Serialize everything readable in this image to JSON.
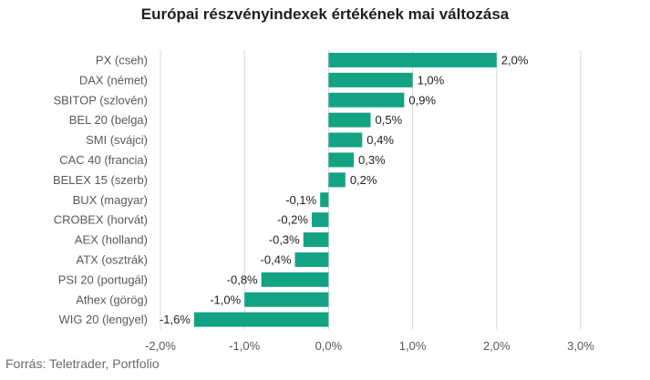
{
  "chart_data": {
    "type": "bar",
    "orientation": "horizontal",
    "title": "Európai részvényindexek értékének mai változása",
    "categories": [
      "PX (cseh)",
      "DAX (német)",
      "SBITOP (szlovén)",
      "BEL 20 (belga)",
      "SMI (svájci)",
      "CAC 40 (francia)",
      "BELEX 15 (szerb)",
      "BUX (magyar)",
      "CROBEX (horvát)",
      "AEX (holland)",
      "ATX (osztrák)",
      "PSI 20 (portugál)",
      "Athex (görög)",
      "WIG 20 (lengyel)"
    ],
    "values": [
      2.0,
      1.0,
      0.9,
      0.5,
      0.4,
      0.3,
      0.2,
      -0.1,
      -0.2,
      -0.3,
      -0.4,
      -0.8,
      -1.0,
      -1.6
    ],
    "value_labels": [
      "2,0%",
      "1,0%",
      "0,9%",
      "0,5%",
      "0,4%",
      "0,3%",
      "0,2%",
      "-0,1%",
      "-0,2%",
      "-0,3%",
      "-0,4%",
      "-0,8%",
      "-1,0%",
      "-1,6%"
    ],
    "xlim": [
      -2.0,
      3.0
    ],
    "x_ticks": [
      -2.0,
      -1.0,
      0.0,
      1.0,
      2.0,
      3.0
    ],
    "x_tick_labels": [
      "-2,0%",
      "-1,0%",
      "0,0%",
      "1,0%",
      "2,0%",
      "3,0%"
    ],
    "grid": true,
    "bar_color": "#13a383",
    "grid_color": "#d9d9d9"
  },
  "source": "Forrás: Teletrader, Portfolio"
}
